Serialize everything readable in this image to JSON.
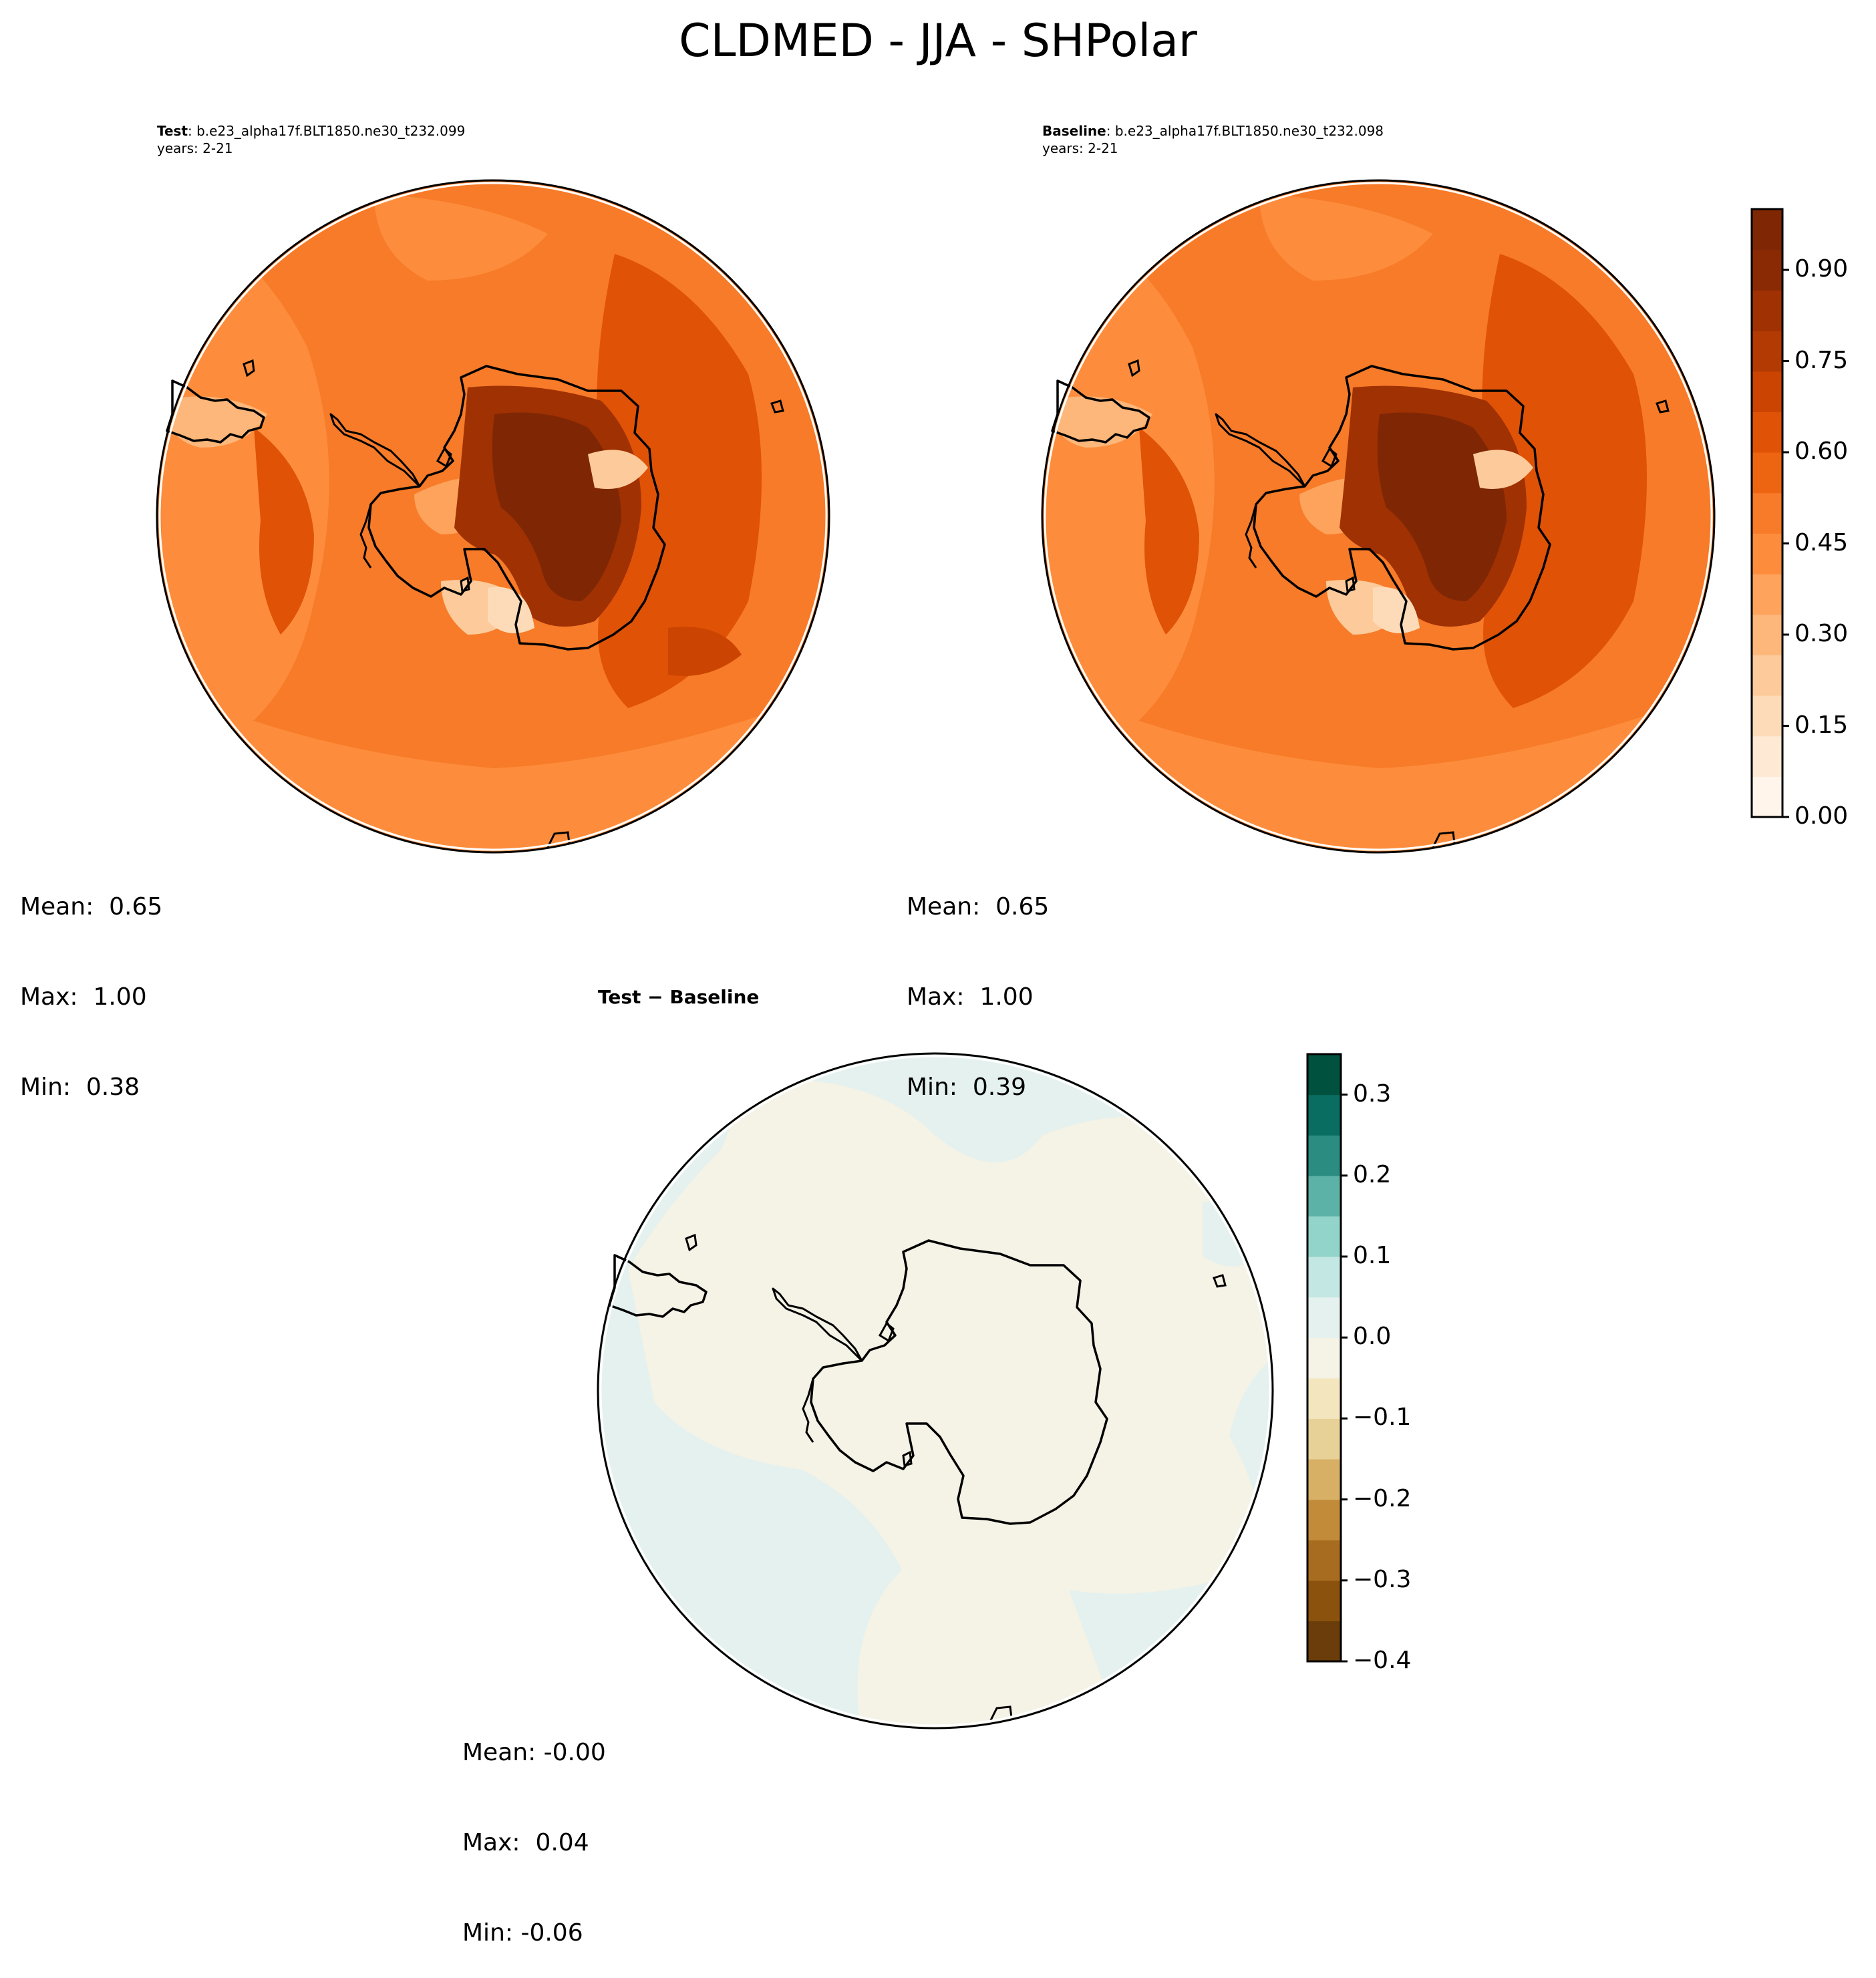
{
  "figure": {
    "title": "CLDMED - JJA - SHPolar"
  },
  "panels": {
    "test": {
      "label_bold": "Test",
      "label_rest": ": b.e23_alpha17f.BLT1850.ne30_t232.099",
      "years": "years: 2-21",
      "stats": {
        "mean": "Mean:  0.65",
        "max": "Max:  1.00",
        "min": "Min:  0.38"
      }
    },
    "baseline": {
      "label_bold": "Baseline",
      "label_rest": ": b.e23_alpha17f.BLT1850.ne30_t232.098",
      "years": "years: 2-21",
      "stats": {
        "mean": "Mean:  0.65",
        "max": "Max:  1.00",
        "min": "Min:  0.39"
      }
    },
    "diff": {
      "title": "Test − Baseline",
      "stats": {
        "mean": "Mean: -0.00",
        "max": "Max:  0.04",
        "min": "Min: -0.06"
      }
    }
  },
  "colorbars": {
    "main": {
      "colormap": "Oranges",
      "range": [
        0.0,
        1.0
      ],
      "ticks": [
        "0.00",
        "0.15",
        "0.30",
        "0.45",
        "0.60",
        "0.75",
        "0.90"
      ],
      "colors": [
        "#fff5eb",
        "#fee9d5",
        "#fddbb8",
        "#fdcb9b",
        "#fdb77a",
        "#fda35c",
        "#fd8d3c",
        "#f77b28",
        "#ee6511",
        "#e05206",
        "#cb4401",
        "#b33a02",
        "#a03103",
        "#8a2a04",
        "#7f2704"
      ]
    },
    "diff": {
      "colormap": "BrBG",
      "range": [
        -0.4,
        0.35
      ],
      "ticks": [
        "−0.4",
        "−0.3",
        "−0.2",
        "−0.1",
        "0.0",
        "0.1",
        "0.2",
        "0.3"
      ],
      "colors": [
        "#6a3d0a",
        "#8b520d",
        "#a86c20",
        "#c28b3a",
        "#d7b066",
        "#e8d197",
        "#f3e6be",
        "#f5f2e6",
        "#e4f1ef",
        "#c3e7e2",
        "#93d4ca",
        "#5cb2a6",
        "#2b8c82",
        "#096d62",
        "#01513f"
      ]
    }
  }
}
